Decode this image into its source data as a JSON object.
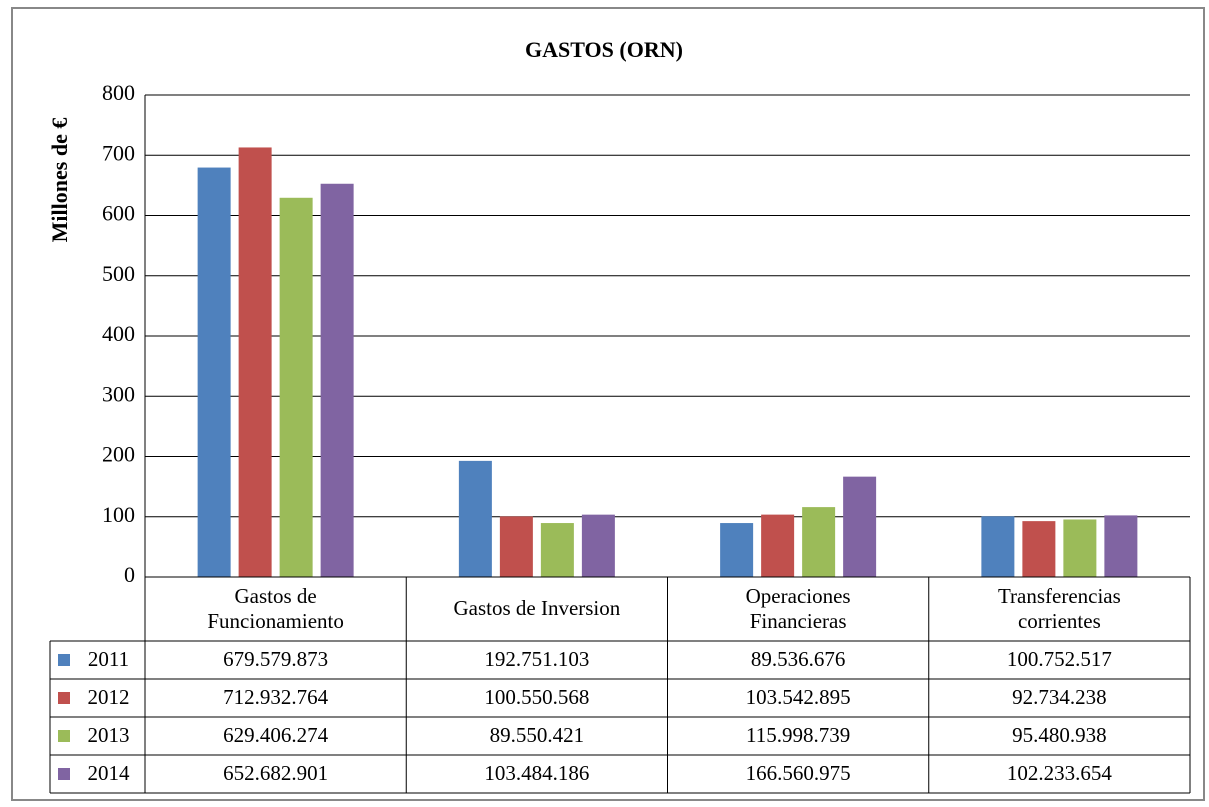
{
  "chart_data": {
    "type": "bar",
    "title": "GASTOS (ORN)",
    "ylabel": "Millones de €",
    "categories": [
      "Gastos de\nFuncionamiento",
      "Gastos de Inversion",
      "Operaciones\nFinancieras",
      "Transferencias\ncorrientes"
    ],
    "series": [
      {
        "name": "2011",
        "color": "#4f81bd",
        "values": [
          679.579873,
          192.751103,
          89.536676,
          100.752517
        ],
        "value_labels": [
          "679.579.873",
          "192.751.103",
          "89.536.676",
          "100.752.517"
        ]
      },
      {
        "name": "2012",
        "color": "#c0504d",
        "values": [
          712.932764,
          100.550568,
          103.542895,
          92.734238
        ],
        "value_labels": [
          "712.932.764",
          "100.550.568",
          "103.542.895",
          "92.734.238"
        ]
      },
      {
        "name": "2013",
        "color": "#9bbb59",
        "values": [
          629.406274,
          89.550421,
          115.998739,
          95.480938
        ],
        "value_labels": [
          "629.406.274",
          "89.550.421",
          "115.998.739",
          "95.480.938"
        ]
      },
      {
        "name": "2014",
        "color": "#8064a2",
        "values": [
          652.682901,
          103.484186,
          166.560975,
          102.233654
        ],
        "value_labels": [
          "652.682.901",
          "103.484.186",
          "166.560.975",
          "102.233.654"
        ]
      }
    ],
    "ylim": [
      0,
      800
    ],
    "yticks": [
      0,
      100,
      200,
      300,
      400,
      500,
      600,
      700,
      800
    ],
    "grid": true,
    "data_table": true
  }
}
